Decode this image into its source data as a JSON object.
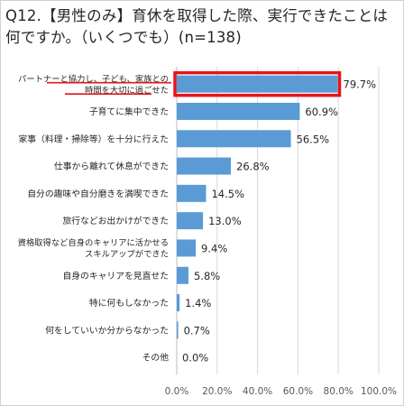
{
  "title": "Q12.【男性のみ】育休を取得した際、実行できたことは何ですか。（いくつでも）(n=138)",
  "colors": {
    "bar": "#5b9bd5",
    "highlight": "#e8141b",
    "grid": "#d9d9d9",
    "text": "#262626"
  },
  "chart_data": {
    "type": "bar",
    "orientation": "horizontal",
    "title": "Q12.【男性のみ】育休を取得した際、実行できたことは何ですか。（いくつでも）(n=138)",
    "categories": [
      [
        "パートナーと協力し、子ども、家族との",
        "時間を大切に過ごせた"
      ],
      [
        "子育てに集中できた"
      ],
      [
        "家事（料理・掃除等）を十分に行えた"
      ],
      [
        "仕事から離れて休息ができた"
      ],
      [
        "自分の趣味や自分磨きを満喫できた"
      ],
      [
        "旅行などお出かけができた"
      ],
      [
        "資格取得など自身のキャリアに活かせる",
        "スキルアップができた"
      ],
      [
        "自身のキャリアを見直せた"
      ],
      [
        "特に何もしなかった"
      ],
      [
        "何をしていいか分からなかった"
      ],
      [
        "その他"
      ]
    ],
    "values": [
      79.7,
      60.9,
      56.5,
      26.8,
      14.5,
      13.0,
      9.4,
      5.8,
      1.4,
      0.7,
      0.0
    ],
    "data_labels": [
      "79.7%",
      "60.9%",
      "56.5%",
      "26.8%",
      "14.5%",
      "13.0%",
      "9.4%",
      "5.8%",
      "1.4%",
      "0.7%",
      "0.0%"
    ],
    "x_ticks": [
      "0.0%",
      "20.0%",
      "40.0%",
      "60.0%",
      "80.0%",
      "100.0%"
    ],
    "xlim": [
      0,
      100
    ],
    "grid": true,
    "highlighted_category_index": 0
  }
}
